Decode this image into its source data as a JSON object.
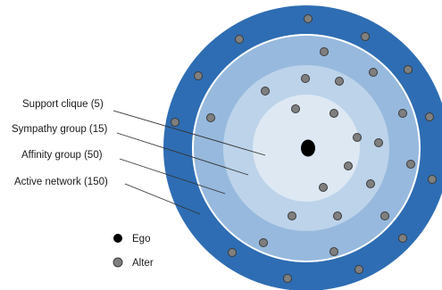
{
  "rings": [
    {
      "label": "Support clique (5)",
      "color": "#dde8f3"
    },
    {
      "label": "Sympathy group (15)",
      "color": "#bcd3ea"
    },
    {
      "label": "Affinity group (50)",
      "color": "#97b9dd"
    },
    {
      "label": "Active network (150)",
      "color": "#2e6db3"
    }
  ],
  "legend": {
    "ego_label": "Ego",
    "alter_label": "Alter"
  },
  "colors": {
    "ego": "#000000",
    "alter": "#7f7f7f",
    "alter_stroke": "#3a3a3a",
    "separator": "#ffffff",
    "leader": "#333333"
  }
}
